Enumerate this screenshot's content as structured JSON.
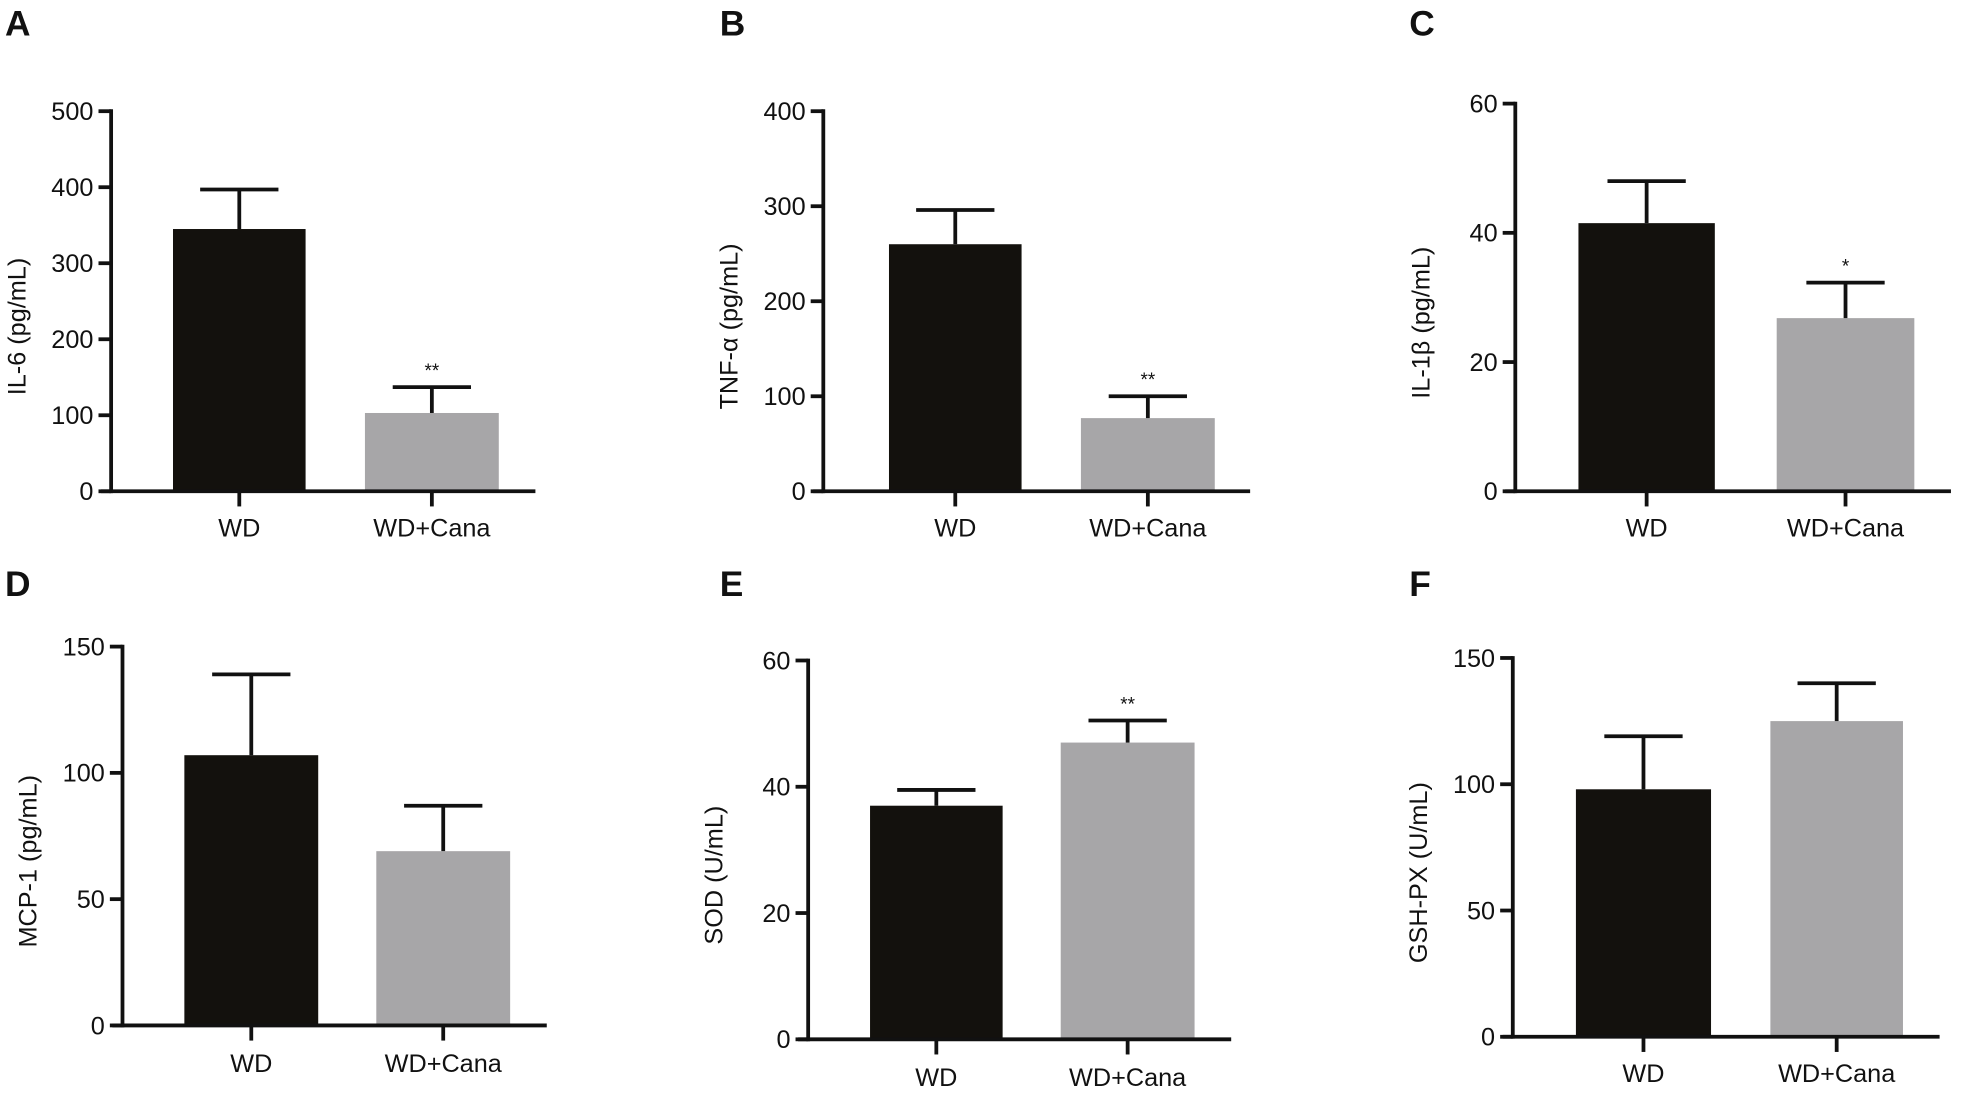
{
  "colors": {
    "wd": "#13110d",
    "wd_cana": "#a7a6a8",
    "axis": "#111111"
  },
  "chart_data": [
    {
      "panel": "A",
      "type": "bar",
      "ylabel": "IL-6 (pg/mL)",
      "categories": [
        "WD",
        "WD+Cana"
      ],
      "values": [
        345,
        103
      ],
      "error_upper": [
        397,
        137
      ],
      "annotations": [
        "",
        "**"
      ],
      "ylim": [
        0,
        500
      ],
      "yticks": [
        0,
        100,
        200,
        300,
        400,
        500
      ]
    },
    {
      "panel": "B",
      "type": "bar",
      "ylabel": "TNF-α (pg/mL)",
      "categories": [
        "WD",
        "WD+Cana"
      ],
      "values": [
        260,
        77
      ],
      "error_upper": [
        296,
        100
      ],
      "annotations": [
        "",
        "**"
      ],
      "ylim": [
        0,
        400
      ],
      "yticks": [
        0,
        100,
        200,
        300,
        400
      ]
    },
    {
      "panel": "C",
      "type": "bar",
      "ylabel": "IL-1β (pg/mL)",
      "categories": [
        "WD",
        "WD+Cana"
      ],
      "values": [
        41.5,
        26.8
      ],
      "error_upper": [
        48,
        32.3
      ],
      "annotations": [
        "",
        "*"
      ],
      "ylim": [
        0,
        60
      ],
      "yticks": [
        0,
        20,
        40,
        60
      ]
    },
    {
      "panel": "D",
      "type": "bar",
      "ylabel": "MCP-1 (pg/mL)",
      "categories": [
        "WD",
        "WD+Cana"
      ],
      "values": [
        107,
        69
      ],
      "error_upper": [
        139,
        87
      ],
      "annotations": [
        "",
        ""
      ],
      "ylim": [
        0,
        150
      ],
      "yticks": [
        0,
        50,
        100,
        150
      ]
    },
    {
      "panel": "E",
      "type": "bar",
      "ylabel": "SOD (U/mL)",
      "categories": [
        "WD",
        "WD+Cana"
      ],
      "values": [
        37,
        47
      ],
      "error_upper": [
        39.5,
        50.5
      ],
      "annotations": [
        "",
        "**"
      ],
      "ylim": [
        0,
        60
      ],
      "yticks": [
        0,
        20,
        40,
        60
      ]
    },
    {
      "panel": "F",
      "type": "bar",
      "ylabel": "GSH-PX (U/mL)",
      "categories": [
        "WD",
        "WD+Cana"
      ],
      "values": [
        98,
        125
      ],
      "error_upper": [
        119,
        140
      ],
      "annotations": [
        "",
        ""
      ],
      "ylim": [
        0,
        150
      ],
      "yticks": [
        0,
        50,
        100,
        150
      ]
    }
  ]
}
